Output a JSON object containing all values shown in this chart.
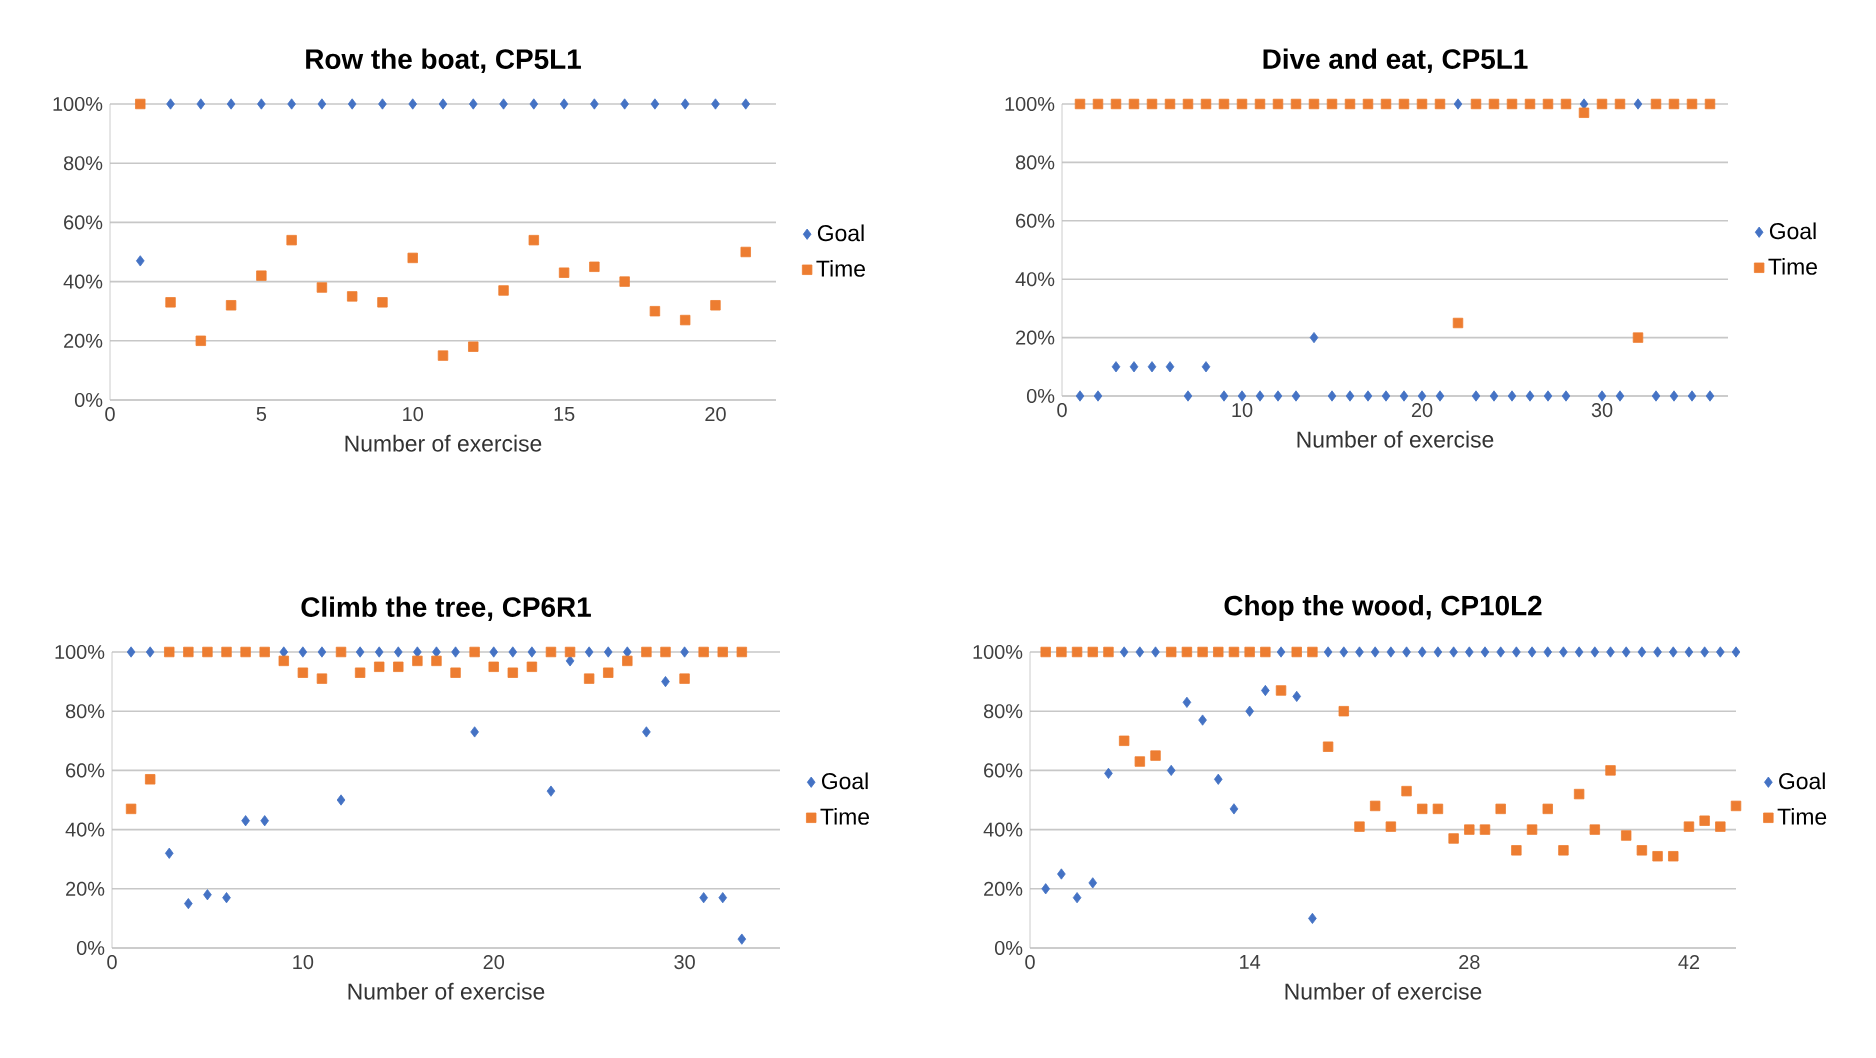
{
  "chart_data": [
    {
      "type": "scatter",
      "title": "Row the boat, CP5L1",
      "xlabel": "Number of exercise",
      "xlim": [
        0,
        22
      ],
      "xticks": [
        0,
        5,
        10,
        15,
        20
      ],
      "ylim": [
        0,
        100
      ],
      "yticks": [
        {
          "value": 0,
          "label": "0%"
        },
        {
          "value": 20,
          "label": "20%"
        },
        {
          "value": 40,
          "label": "40%"
        },
        {
          "value": 60,
          "label": "60%"
        },
        {
          "value": 80,
          "label": "80%"
        },
        {
          "value": 100,
          "label": "100%"
        }
      ],
      "grid": "y",
      "legend": "right",
      "x": [
        1,
        2,
        3,
        4,
        5,
        6,
        7,
        8,
        9,
        10,
        11,
        12,
        13,
        14,
        15,
        16,
        17,
        18,
        19,
        20,
        21
      ],
      "series": [
        {
          "name": "Goal",
          "color": "#4472c4",
          "marker": "diamond",
          "values": [
            47,
            100,
            100,
            100,
            100,
            100,
            100,
            100,
            100,
            100,
            100,
            100,
            100,
            100,
            100,
            100,
            100,
            100,
            100,
            100,
            100
          ]
        },
        {
          "name": "Time",
          "color": "#ed7d31",
          "marker": "square",
          "values": [
            100,
            33,
            20,
            32,
            42,
            54,
            38,
            35,
            33,
            48,
            15,
            18,
            37,
            54,
            43,
            45,
            40,
            30,
            27,
            32,
            50
          ]
        }
      ]
    },
    {
      "type": "scatter",
      "title": "Dive and eat, CP5L1",
      "xlabel": "Number of exercise",
      "xlim": [
        0,
        37
      ],
      "xticks": [
        0,
        10,
        20,
        30
      ],
      "ylim": [
        0,
        100
      ],
      "yticks": [
        {
          "value": 0,
          "label": "0%"
        },
        {
          "value": 20,
          "label": "20%"
        },
        {
          "value": 40,
          "label": "40%"
        },
        {
          "value": 60,
          "label": "60%"
        },
        {
          "value": 80,
          "label": "80%"
        },
        {
          "value": 100,
          "label": "100%"
        }
      ],
      "grid": "y",
      "legend": "right",
      "x": [
        1,
        2,
        3,
        4,
        5,
        6,
        7,
        8,
        9,
        10,
        11,
        12,
        13,
        14,
        15,
        16,
        17,
        18,
        19,
        20,
        21,
        22,
        23,
        24,
        25,
        26,
        27,
        28,
        29,
        30,
        31,
        32,
        33,
        34,
        35,
        36
      ],
      "series": [
        {
          "name": "Goal",
          "color": "#4472c4",
          "marker": "diamond",
          "values": [
            0,
            0,
            10,
            10,
            10,
            10,
            0,
            10,
            0,
            0,
            0,
            0,
            0,
            20,
            0,
            0,
            0,
            0,
            0,
            0,
            0,
            100,
            0,
            0,
            0,
            0,
            0,
            0,
            100,
            0,
            0,
            100,
            0,
            0,
            0,
            0
          ]
        },
        {
          "name": "Time",
          "color": "#ed7d31",
          "marker": "square",
          "values": [
            100,
            100,
            100,
            100,
            100,
            100,
            100,
            100,
            100,
            100,
            100,
            100,
            100,
            100,
            100,
            100,
            100,
            100,
            100,
            100,
            100,
            25,
            100,
            100,
            100,
            100,
            100,
            100,
            97,
            100,
            100,
            20,
            100,
            100,
            100,
            100
          ]
        }
      ]
    },
    {
      "type": "scatter",
      "title": "Climb the tree, CP6R1",
      "xlabel": "Number of exercise",
      "xlim": [
        0,
        35
      ],
      "xticks": [
        0,
        10,
        20,
        30
      ],
      "ylim": [
        0,
        100
      ],
      "yticks": [
        {
          "value": 0,
          "label": "0%"
        },
        {
          "value": 20,
          "label": "20%"
        },
        {
          "value": 40,
          "label": "40%"
        },
        {
          "value": 60,
          "label": "60%"
        },
        {
          "value": 80,
          "label": "80%"
        },
        {
          "value": 100,
          "label": "100%"
        }
      ],
      "grid": "y",
      "legend": "right",
      "x": [
        1,
        2,
        3,
        4,
        5,
        6,
        7,
        8,
        9,
        10,
        11,
        12,
        13,
        14,
        15,
        16,
        17,
        18,
        19,
        20,
        21,
        22,
        23,
        24,
        25,
        26,
        27,
        28,
        29,
        30,
        31,
        32,
        33
      ],
      "series": [
        {
          "name": "Goal",
          "color": "#4472c4",
          "marker": "diamond",
          "values": [
            100,
            100,
            32,
            15,
            18,
            17,
            43,
            43,
            100,
            100,
            100,
            50,
            100,
            100,
            100,
            100,
            100,
            100,
            73,
            100,
            100,
            100,
            53,
            97,
            100,
            100,
            100,
            73,
            90,
            100,
            17,
            17,
            3
          ]
        },
        {
          "name": "Time",
          "color": "#ed7d31",
          "marker": "square",
          "values": [
            47,
            57,
            100,
            100,
            100,
            100,
            100,
            100,
            97,
            93,
            91,
            100,
            93,
            95,
            95,
            97,
            97,
            93,
            100,
            95,
            93,
            95,
            100,
            100,
            91,
            93,
            97,
            100,
            100,
            91,
            100,
            100,
            100
          ]
        }
      ]
    },
    {
      "type": "scatter",
      "title": "Chop the wood, CP10L2",
      "xlabel": "Number of exercise",
      "xlim": [
        0,
        45
      ],
      "xticks": [
        0,
        14,
        28,
        42
      ],
      "ylim": [
        0,
        100
      ],
      "yticks": [
        {
          "value": 0,
          "label": "0%"
        },
        {
          "value": 20,
          "label": "20%"
        },
        {
          "value": 40,
          "label": "40%"
        },
        {
          "value": 60,
          "label": "60%"
        },
        {
          "value": 80,
          "label": "80%"
        },
        {
          "value": 100,
          "label": "100%"
        }
      ],
      "grid": "y",
      "legend": "right",
      "x": [
        1,
        2,
        3,
        4,
        5,
        6,
        7,
        8,
        9,
        10,
        11,
        12,
        13,
        14,
        15,
        16,
        17,
        18,
        19,
        20,
        21,
        22,
        23,
        24,
        25,
        26,
        27,
        28,
        29,
        30,
        31,
        32,
        33,
        34,
        35,
        36,
        37,
        38,
        39,
        40,
        41,
        42,
        43,
        44,
        45
      ],
      "series": [
        {
          "name": "Goal",
          "color": "#4472c4",
          "marker": "diamond",
          "values": [
            20,
            25,
            17,
            22,
            59,
            100,
            100,
            100,
            60,
            83,
            77,
            57,
            47,
            80,
            87,
            100,
            85,
            10,
            100,
            100,
            100,
            100,
            100,
            100,
            100,
            100,
            100,
            100,
            100,
            100,
            100,
            100,
            100,
            100,
            100,
            100,
            100,
            100,
            100,
            100,
            100,
            100,
            100,
            100,
            100
          ]
        },
        {
          "name": "Time",
          "color": "#ed7d31",
          "marker": "square",
          "values": [
            100,
            100,
            100,
            100,
            100,
            70,
            63,
            65,
            100,
            100,
            100,
            100,
            100,
            100,
            100,
            87,
            100,
            100,
            68,
            80,
            41,
            48,
            41,
            53,
            47,
            47,
            37,
            40,
            40,
            47,
            33,
            40,
            47,
            33,
            52,
            40,
            60,
            38,
            33,
            31,
            31,
            41,
            43,
            41,
            48
          ]
        }
      ]
    }
  ]
}
